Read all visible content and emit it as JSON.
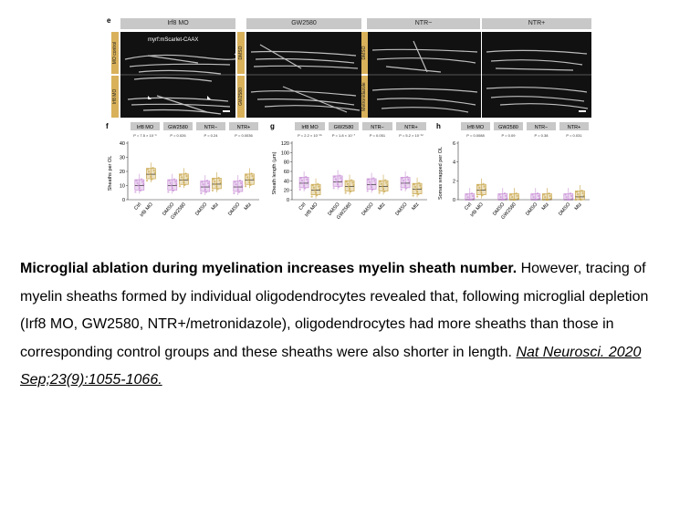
{
  "panel_e": {
    "label": "e",
    "headers": [
      "Irf8 MO",
      "GW2580",
      "NTR−",
      "NTR+"
    ],
    "marker_label": "myrf:mScarlet-CAAX",
    "row_labels_left": [
      "MO control",
      "Irf8 MO"
    ],
    "row_labels_right": [
      "DMSO",
      "GW2580",
      "DMSO",
      "Metronidazole"
    ]
  },
  "chart_data": [
    {
      "type": "box",
      "panel": "f",
      "ylabel": "Sheaths per OL",
      "ylim": [
        0,
        40
      ],
      "yticks": [
        0,
        10,
        20,
        30,
        40
      ],
      "groups": [
        {
          "name": "Irf8 MO",
          "pvalue": "P = 7.5 × 10⁻⁶",
          "categories": [
            "Ctrl",
            "Irf8 MO"
          ],
          "medians": [
            10,
            18
          ]
        },
        {
          "name": "GW2580",
          "pvalue": "P = 0.026",
          "categories": [
            "DMSO",
            "GW2580"
          ],
          "medians": [
            10,
            14
          ]
        },
        {
          "name": "NTR−",
          "pvalue": "P = 0.24",
          "categories": [
            "DMSO",
            "Mtz"
          ],
          "medians": [
            9,
            11
          ]
        },
        {
          "name": "NTR+",
          "pvalue": "P = 0.0036",
          "categories": [
            "DMSO",
            "Mtz"
          ],
          "medians": [
            9,
            14
          ]
        }
      ]
    },
    {
      "type": "box",
      "panel": "g",
      "ylabel": "Sheath length (µm)",
      "ylim": [
        0,
        120
      ],
      "yticks": [
        0,
        20,
        40,
        60,
        80,
        100,
        120
      ],
      "groups": [
        {
          "name": "Irf8 MO",
          "pvalue": "P = 2.2 × 10⁻¹⁵",
          "categories": [
            "Ctrl",
            "Irf8 MO"
          ],
          "medians": [
            35,
            20
          ]
        },
        {
          "name": "GW2580",
          "pvalue": "P = 1.8 × 10⁻⁷",
          "categories": [
            "DMSO",
            "GW2580"
          ],
          "medians": [
            38,
            28
          ]
        },
        {
          "name": "NTR−",
          "pvalue": "P = 0.051",
          "categories": [
            "DMSO",
            "Mtz"
          ],
          "medians": [
            32,
            28
          ]
        },
        {
          "name": "NTR+",
          "pvalue": "P = 5.2 × 10⁻¹²",
          "categories": [
            "DMSO",
            "Mtz"
          ],
          "medians": [
            35,
            22
          ]
        }
      ]
    },
    {
      "type": "box",
      "panel": "h",
      "ylabel": "Somas wrapped per OL",
      "ylim": [
        0,
        6
      ],
      "yticks": [
        0,
        2,
        4,
        6
      ],
      "groups": [
        {
          "name": "Irf8 MO",
          "pvalue": "P = 0.0088",
          "categories": [
            "Ctrl",
            "Irf8 MO"
          ],
          "medians": [
            0,
            1
          ]
        },
        {
          "name": "GW2580",
          "pvalue": "P = 0.09",
          "categories": [
            "DMSO",
            "GW2580"
          ],
          "medians": [
            0,
            0
          ]
        },
        {
          "name": "NTR−",
          "pvalue": "P = 0.38",
          "categories": [
            "DMSO",
            "Mtz"
          ],
          "medians": [
            0,
            0
          ]
        },
        {
          "name": "NTR+",
          "pvalue": "P = 0.031",
          "categories": [
            "DMSO",
            "Mtz"
          ],
          "medians": [
            0,
            0.3
          ]
        }
      ]
    }
  ],
  "colors": {
    "control": "#c98fd6",
    "treated": "#c9a64a",
    "header": "#c8c8c8"
  },
  "caption": {
    "title": "Microglial ablation during myelination increases myelin sheath number.",
    "body": "However, tracing of myelin sheaths formed by individual oligodendrocytes revealed that, following microglial depletion (Irf8 MO, GW2580, NTR+/metronidazole), oligodendrocytes had more sheaths than those in corresponding control groups and these sheaths were also shorter in length.",
    "citation": "Nat Neurosci. 2020 Sep;23(9):1055-1066."
  }
}
